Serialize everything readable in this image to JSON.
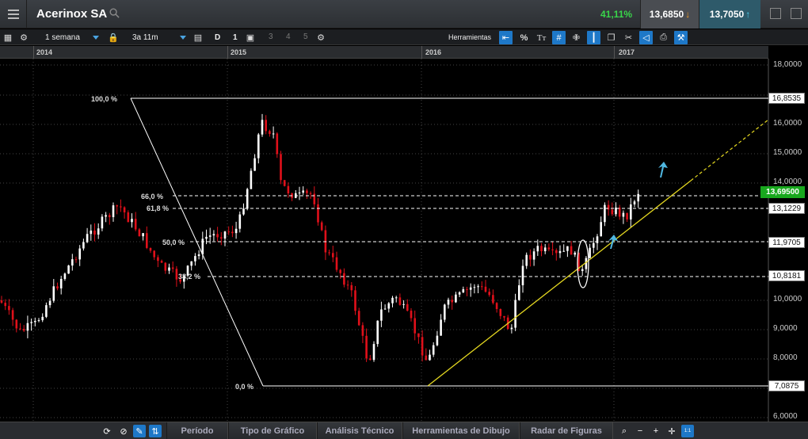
{
  "header": {
    "instrument": "Acerinox SA",
    "change_pct": "41,11%",
    "sell_price": "13,6850",
    "buy_price": "13,7050"
  },
  "toolbar": {
    "period": "1 semana",
    "range": "3a 11m",
    "period_d": "D",
    "period_1": "1",
    "numbers": [
      "3",
      "4",
      "5"
    ],
    "tools_label": "Herramientas",
    "pct_symbol": "%",
    "text_symbol": "Tт"
  },
  "years": [
    "2014",
    "2015",
    "2016",
    "2017"
  ],
  "axis": {
    "ticks": [
      "18,0000",
      "16,0000",
      "15,0000",
      "14,0000",
      "10,0000",
      "9,0000",
      "8,0000",
      "6,0000"
    ],
    "boxes": [
      "16,8535",
      "13,1229",
      "11,9705",
      "10,8181",
      "7,0875"
    ],
    "current_price": "13,69500"
  },
  "fibonacci": {
    "levels": [
      "100,0 %",
      "66,0 %",
      "61,8 %",
      "50,0 %",
      "38,2 %",
      "0,0 %"
    ]
  },
  "bottom": {
    "tabs": [
      "Período",
      "Tipo de Gráfico",
      "Análisis Técnico",
      "Herramientas de Dibujo",
      "Radar de Figuras"
    ]
  },
  "colors": {
    "up": "#ffffff",
    "down": "#e0101a",
    "trendline": "#e5d820",
    "current_price_bg": "#19a81e",
    "active_tool": "#1e78c8"
  }
}
